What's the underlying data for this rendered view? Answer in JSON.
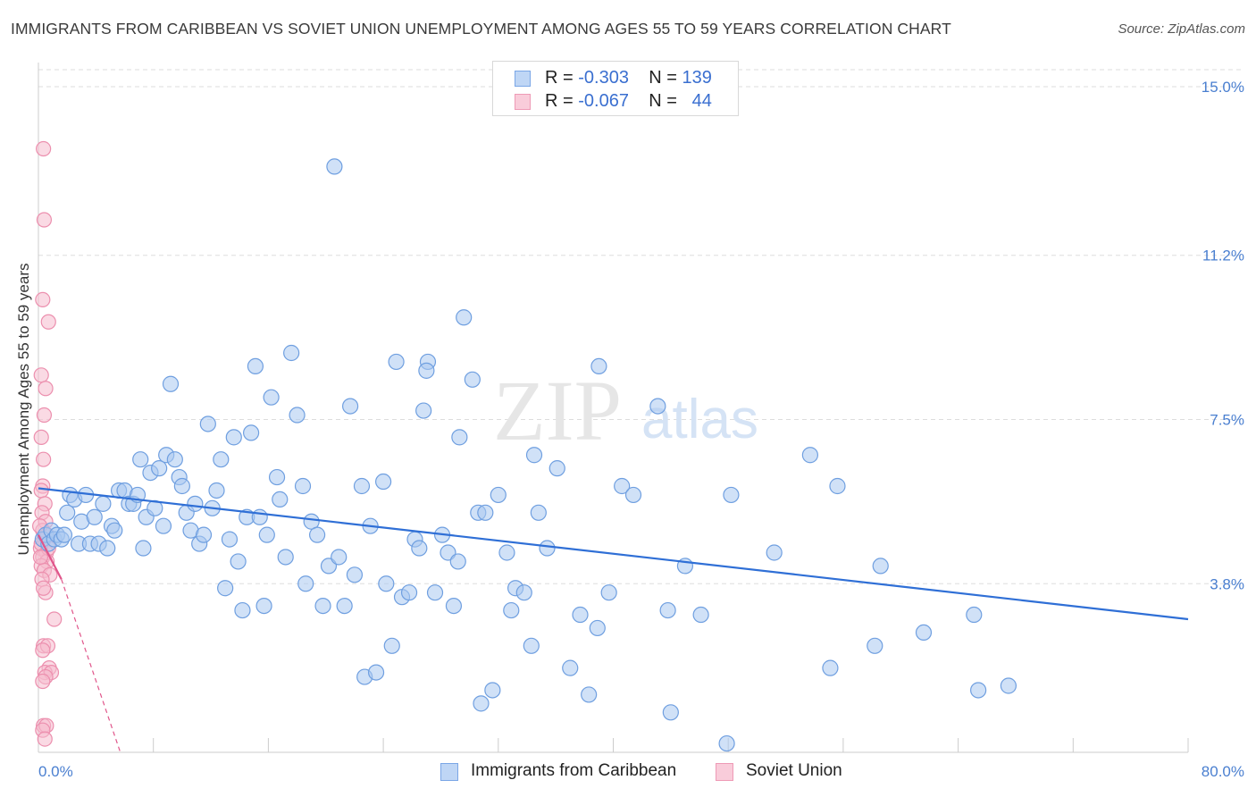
{
  "header": {
    "title": "IMMIGRANTS FROM CARIBBEAN VS SOVIET UNION UNEMPLOYMENT AMONG AGES 55 TO 59 YEARS CORRELATION CHART",
    "source": "Source: ZipAtlas.com"
  },
  "watermark": {
    "zip": "ZIP",
    "atlas": "atlas"
  },
  "legend": {
    "rows": [
      {
        "r_label": "R = ",
        "r_value": "-0.303",
        "n_label": "N = ",
        "n_value": "139"
      },
      {
        "r_label": "R = ",
        "r_value": "-0.067",
        "n_label": "N = ",
        "n_value": "44"
      }
    ]
  },
  "bottom_legend": {
    "series1": "Immigrants from Caribbean",
    "series2": "Soviet Union"
  },
  "colors": {
    "caribbean_fill": "#aac8f0",
    "caribbean_stroke": "#6f9fe0",
    "caribbean_line": "#2f6fd6",
    "soviet_fill": "#f6bccd",
    "soviet_stroke": "#ec8fae",
    "soviet_line": "#e0558a",
    "tick_text": "#4a7fd0",
    "grid": "#dddddd"
  },
  "chart_data": {
    "type": "scatter",
    "title": "IMMIGRANTS FROM CARIBBEAN VS SOVIET UNION UNEMPLOYMENT AMONG AGES 55 TO 59 YEARS CORRELATION CHART",
    "xlabel": "",
    "ylabel": "Unemployment Among Ages 55 to 59 years",
    "xlim": [
      0,
      80
    ],
    "ylim": [
      0,
      15.5
    ],
    "x_tick_labels": [
      "0.0%",
      "80.0%"
    ],
    "y_ticks": [
      3.8,
      7.5,
      11.2,
      15.0
    ],
    "y_tick_labels": [
      "3.8%",
      "7.5%",
      "11.2%",
      "15.0%"
    ],
    "grid": "horizontal dashed",
    "legend_position": "top-center",
    "series": [
      {
        "name": "Immigrants from Caribbean",
        "R": -0.303,
        "N": 139,
        "trend": {
          "x": [
            0,
            80
          ],
          "y": [
            5.95,
            3.0
          ]
        },
        "points": [
          [
            0.3,
            4.8
          ],
          [
            0.5,
            4.9
          ],
          [
            0.7,
            4.7
          ],
          [
            0.9,
            5.0
          ],
          [
            1.1,
            4.8
          ],
          [
            1.3,
            4.9
          ],
          [
            1.6,
            4.8
          ],
          [
            1.8,
            4.9
          ],
          [
            2.0,
            5.4
          ],
          [
            2.2,
            5.8
          ],
          [
            2.5,
            5.7
          ],
          [
            2.8,
            4.7
          ],
          [
            3.0,
            5.2
          ],
          [
            3.3,
            5.8
          ],
          [
            3.6,
            4.7
          ],
          [
            3.9,
            5.3
          ],
          [
            4.2,
            4.7
          ],
          [
            4.5,
            5.6
          ],
          [
            4.8,
            4.6
          ],
          [
            5.1,
            5.1
          ],
          [
            5.3,
            5.0
          ],
          [
            5.6,
            5.9
          ],
          [
            6.0,
            5.9
          ],
          [
            6.3,
            5.6
          ],
          [
            6.6,
            5.6
          ],
          [
            6.9,
            5.8
          ],
          [
            7.1,
            6.6
          ],
          [
            7.3,
            4.6
          ],
          [
            7.5,
            5.3
          ],
          [
            7.8,
            6.3
          ],
          [
            8.1,
            5.5
          ],
          [
            8.4,
            6.4
          ],
          [
            8.7,
            5.1
          ],
          [
            8.9,
            6.7
          ],
          [
            9.2,
            8.3
          ],
          [
            9.5,
            6.6
          ],
          [
            9.8,
            6.2
          ],
          [
            10.0,
            6.0
          ],
          [
            10.3,
            5.4
          ],
          [
            10.6,
            5.0
          ],
          [
            10.9,
            5.6
          ],
          [
            11.2,
            4.7
          ],
          [
            11.5,
            4.9
          ],
          [
            11.8,
            7.4
          ],
          [
            12.1,
            5.5
          ],
          [
            12.4,
            5.9
          ],
          [
            12.7,
            6.6
          ],
          [
            13.0,
            3.7
          ],
          [
            13.3,
            4.8
          ],
          [
            13.6,
            7.1
          ],
          [
            13.9,
            4.3
          ],
          [
            14.2,
            3.2
          ],
          [
            14.5,
            5.3
          ],
          [
            14.8,
            7.2
          ],
          [
            15.1,
            8.7
          ],
          [
            15.4,
            5.3
          ],
          [
            15.7,
            3.3
          ],
          [
            15.9,
            4.9
          ],
          [
            16.2,
            8.0
          ],
          [
            16.6,
            6.2
          ],
          [
            16.8,
            5.7
          ],
          [
            17.2,
            4.4
          ],
          [
            17.6,
            9.0
          ],
          [
            18.0,
            7.6
          ],
          [
            18.4,
            6.0
          ],
          [
            18.6,
            3.8
          ],
          [
            19.0,
            5.2
          ],
          [
            19.4,
            4.9
          ],
          [
            19.8,
            3.3
          ],
          [
            20.2,
            4.2
          ],
          [
            20.6,
            13.2
          ],
          [
            20.9,
            4.4
          ],
          [
            21.3,
            3.3
          ],
          [
            21.7,
            7.8
          ],
          [
            22.0,
            4.0
          ],
          [
            22.5,
            6.0
          ],
          [
            22.7,
            1.7
          ],
          [
            23.1,
            5.1
          ],
          [
            23.5,
            1.8
          ],
          [
            24.0,
            6.1
          ],
          [
            24.2,
            3.8
          ],
          [
            24.6,
            2.4
          ],
          [
            24.9,
            8.8
          ],
          [
            25.3,
            3.5
          ],
          [
            25.8,
            3.6
          ],
          [
            26.2,
            4.8
          ],
          [
            26.5,
            4.6
          ],
          [
            26.8,
            7.7
          ],
          [
            27.1,
            8.8
          ],
          [
            27.0,
            8.6
          ],
          [
            27.6,
            3.6
          ],
          [
            28.1,
            4.9
          ],
          [
            28.5,
            4.5
          ],
          [
            28.9,
            3.3
          ],
          [
            29.2,
            4.3
          ],
          [
            29.6,
            9.8
          ],
          [
            29.3,
            7.1
          ],
          [
            30.2,
            8.4
          ],
          [
            30.6,
            5.4
          ],
          [
            30.8,
            1.1
          ],
          [
            31.1,
            5.4
          ],
          [
            31.6,
            1.4
          ],
          [
            32.0,
            5.8
          ],
          [
            32.6,
            4.5
          ],
          [
            32.9,
            3.2
          ],
          [
            33.2,
            3.7
          ],
          [
            33.8,
            3.6
          ],
          [
            34.3,
            2.4
          ],
          [
            34.5,
            6.7
          ],
          [
            34.8,
            5.4
          ],
          [
            35.4,
            4.6
          ],
          [
            36.1,
            6.4
          ],
          [
            37.0,
            1.9
          ],
          [
            37.7,
            3.1
          ],
          [
            38.3,
            1.3
          ],
          [
            38.9,
            2.8
          ],
          [
            39.0,
            8.7
          ],
          [
            39.7,
            3.6
          ],
          [
            40.6,
            6.0
          ],
          [
            41.4,
            5.8
          ],
          [
            43.1,
            7.8
          ],
          [
            43.8,
            3.2
          ],
          [
            44.0,
            0.9
          ],
          [
            45.0,
            4.2
          ],
          [
            46.1,
            3.1
          ],
          [
            47.9,
            0.2
          ],
          [
            48.2,
            5.8
          ],
          [
            51.2,
            4.5
          ],
          [
            53.7,
            6.7
          ],
          [
            55.6,
            6.0
          ],
          [
            55.1,
            1.9
          ],
          [
            58.6,
            4.2
          ],
          [
            58.2,
            2.4
          ],
          [
            61.6,
            2.7
          ],
          [
            65.1,
            3.1
          ],
          [
            65.4,
            1.4
          ],
          [
            67.5,
            1.5
          ]
        ]
      },
      {
        "name": "Soviet Union",
        "R": -0.067,
        "N": 44,
        "trend": {
          "x": [
            0,
            1.6
          ],
          "y": [
            4.9,
            3.9
          ]
        },
        "trend_extension": {
          "x": [
            1.6,
            5.7
          ],
          "y": [
            3.9,
            0.0
          ]
        },
        "points": [
          [
            0.35,
            13.6
          ],
          [
            0.4,
            12.0
          ],
          [
            0.3,
            10.2
          ],
          [
            0.7,
            9.7
          ],
          [
            0.2,
            8.5
          ],
          [
            0.5,
            8.2
          ],
          [
            0.4,
            7.6
          ],
          [
            0.2,
            7.1
          ],
          [
            0.35,
            6.6
          ],
          [
            0.3,
            6.0
          ],
          [
            0.2,
            5.9
          ],
          [
            0.45,
            5.6
          ],
          [
            0.25,
            5.4
          ],
          [
            0.5,
            5.2
          ],
          [
            0.3,
            5.0
          ],
          [
            0.4,
            4.8
          ],
          [
            0.15,
            4.6
          ],
          [
            0.55,
            4.5
          ],
          [
            0.3,
            4.4
          ],
          [
            0.6,
            4.3
          ],
          [
            0.2,
            4.2
          ],
          [
            0.4,
            4.1
          ],
          [
            0.8,
            4.0
          ],
          [
            0.25,
            3.9
          ],
          [
            0.5,
            3.6
          ],
          [
            0.35,
            3.7
          ],
          [
            1.1,
            3.0
          ],
          [
            0.35,
            2.4
          ],
          [
            0.65,
            2.4
          ],
          [
            0.3,
            2.3
          ],
          [
            0.75,
            1.9
          ],
          [
            0.45,
            1.8
          ],
          [
            0.9,
            1.8
          ],
          [
            0.5,
            1.7
          ],
          [
            0.3,
            1.6
          ],
          [
            0.35,
            0.6
          ],
          [
            0.55,
            0.6
          ],
          [
            0.3,
            0.5
          ],
          [
            0.45,
            0.3
          ],
          [
            0.2,
            4.7
          ],
          [
            0.6,
            4.9
          ],
          [
            0.1,
            5.1
          ],
          [
            0.7,
            4.6
          ],
          [
            0.15,
            4.4
          ]
        ]
      }
    ]
  }
}
